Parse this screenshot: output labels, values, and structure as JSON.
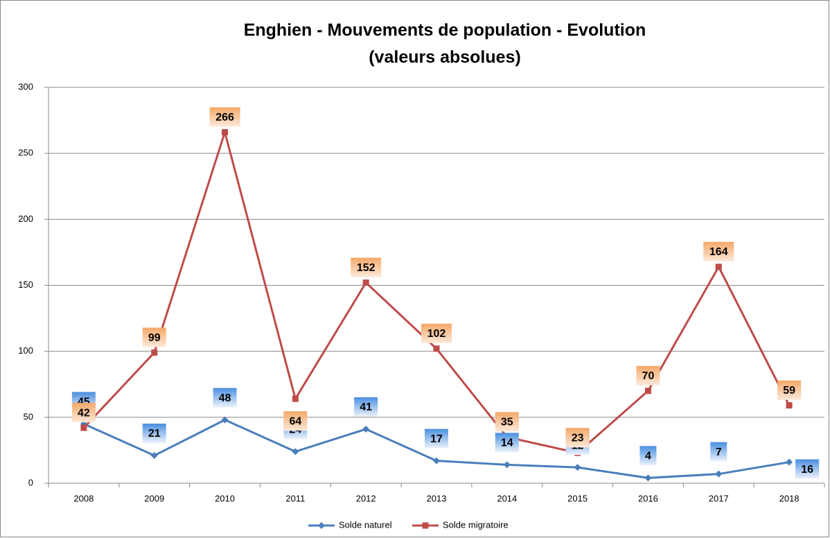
{
  "chart_data": {
    "type": "line",
    "title": "Enghien - Mouvements de population - Evolution",
    "subtitle": "(valeurs absolues)",
    "categories": [
      "2008",
      "2009",
      "2010",
      "2011",
      "2012",
      "2013",
      "2014",
      "2015",
      "2016",
      "2017",
      "2018"
    ],
    "series": [
      {
        "name": "Solde naturel",
        "color": "#4a7ebb",
        "marker": "diamond",
        "values": [
          45,
          21,
          48,
          24,
          41,
          17,
          14,
          12,
          4,
          7,
          16
        ]
      },
      {
        "name": "Solde migratoire",
        "color": "#be4b48",
        "marker": "square",
        "values": [
          42,
          99,
          266,
          64,
          152,
          102,
          35,
          23,
          70,
          164,
          59
        ]
      }
    ],
    "ylim": [
      0,
      300
    ],
    "yticks": [
      0,
      50,
      100,
      150,
      200,
      250,
      300
    ],
    "grid": true,
    "legend": "bottom"
  }
}
